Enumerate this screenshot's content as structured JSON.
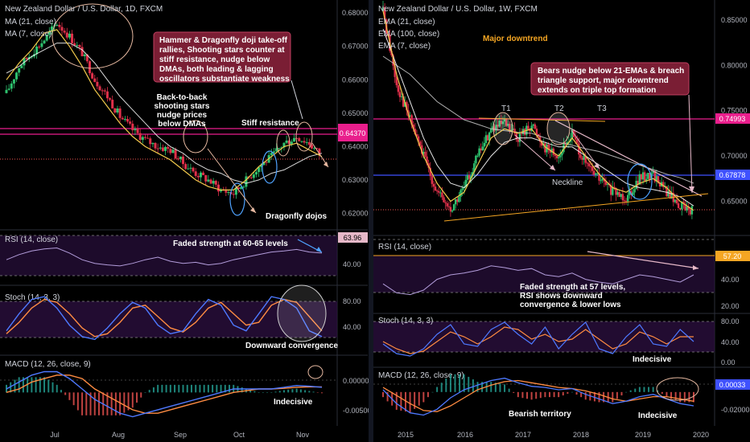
{
  "colors": {
    "bg": "#000000",
    "bull": "#26a69a",
    "bear": "#ef5350",
    "bull_candle": "#2ec26e",
    "bear_candle": "#e0304a",
    "ma21": "#ffffff",
    "ma7": "#f2c94c",
    "ema100": "#cccccc",
    "rsi": "#b39ddb",
    "stoch_k": "#4e79ff",
    "stoch_d": "#ff8c42",
    "macd": "#4e79ff",
    "signal": "#ff8c42",
    "magenta": "#e91e8c",
    "blue_line": "#3f51ff",
    "callout_fill": "#7a1e34",
    "circle": "#e6b8a0",
    "circle_blue": "#4fa3ff"
  },
  "panels": {
    "left": {
      "title": "New Zealand Dollar / U.S. Dollar, 1D, FXCM",
      "ind1": "MA (21, close)",
      "ind2": "MA (7, close)",
      "rsi_title": "RSI (14, close)",
      "stoch_title": "Stoch (14, 3, 3)",
      "macd_title": "MACD (12, 26, close, 9)",
      "price_axis": [
        "0.68000",
        "0.67000",
        "0.66000",
        "0.65000",
        "0.64000",
        "0.63000",
        "0.62000"
      ],
      "price_tag_1": "0.64370",
      "rsi_tag": "63.96",
      "rsi_axis": [
        "40.00"
      ],
      "stoch_axis": [
        "80.00",
        "40.00"
      ],
      "macd_axis": [
        "0.00000",
        "-0.00500"
      ],
      "x_labels": [
        "Jul",
        "Aug",
        "Sep",
        "Oct",
        "Nov"
      ],
      "callout": [
        "Hammer & Dragonfly doji take-off",
        "rallies, Shooting stars counter at",
        "stiff resistance, nudge below",
        "DMAs, both leading & lagging",
        "oscillators substantiate weakness"
      ],
      "ann_shooting": [
        "Back-to-back",
        "shooting stars",
        "nudge prices",
        "below DMAs"
      ],
      "ann_stiff": "Stiff resistance",
      "ann_dragonfly": "Dragonfly dojos",
      "ann_rsi": "Faded strength at 60-65 levels",
      "ann_stoch": "Downward convergence",
      "ann_macd": "Indecisive"
    },
    "right": {
      "title": "New Zealand Dollar / U.S. Dollar, 1W, FXCM",
      "ind1": "EMA (21, close)",
      "ind2": "EMA (100, close)",
      "ind3": "EMA (7, close)",
      "rsi_title": "RSI (14, close)",
      "stoch_title": "Stoch (14, 3, 3)",
      "macd_title": "MACD (12, 26, close, 9)",
      "price_axis": [
        "0.85000",
        "0.80000",
        "0.75000",
        "0.70000",
        "0.65000"
      ],
      "price_tag_1": "0.74993",
      "price_tag_2": "0.67878",
      "rsi_tag": "57.20",
      "rsi_axis": [
        "40.00",
        "20.00"
      ],
      "stoch_axis": [
        "80.00",
        "40.00",
        "0.00"
      ],
      "macd_tag": "0.00033",
      "macd_axis": [
        "-0.02000"
      ],
      "x_labels": [
        "2015",
        "2016",
        "2017",
        "2018",
        "2019",
        "2020"
      ],
      "ann_major": "Major downtrend",
      "callout": [
        "Bears nudge below 21-EMAs & breach",
        "triangle support, major downtrend",
        "extends on triple top formation"
      ],
      "t1": "T1",
      "t2": "T2",
      "t3": "T3",
      "neckline": "Neckline",
      "ann_rsi": [
        "Faded strength at 57 levels,",
        "RSI shows downward",
        "convergence & lower lows"
      ],
      "ann_stoch": "Indecisive",
      "ann_macd_bearish": "Bearish territory",
      "ann_macd_indecisive": "Indecisive"
    }
  },
  "chart_data": [
    {
      "type": "candlestick",
      "title": "New Zealand Dollar / U.S. Dollar, 1D, FXCM",
      "x_ticks": [
        "Jul",
        "Aug",
        "Sep",
        "Oct",
        "Nov"
      ],
      "ylim": [
        0.6165,
        0.681
      ],
      "series": [
        {
          "name": "MA (21, close)",
          "values": [
            0.662,
            0.664,
            0.667,
            0.669,
            0.671,
            0.671,
            0.669,
            0.665,
            0.66,
            0.655,
            0.651,
            0.647,
            0.643,
            0.64,
            0.638,
            0.635,
            0.633,
            0.632,
            0.63,
            0.629,
            0.63,
            0.632,
            0.633,
            0.635,
            0.637,
            0.638
          ]
        },
        {
          "name": "MA (7, close)",
          "values": [
            0.66,
            0.665,
            0.669,
            0.674,
            0.675,
            0.67,
            0.664,
            0.657,
            0.652,
            0.647,
            0.643,
            0.64,
            0.638,
            0.636,
            0.633,
            0.63,
            0.628,
            0.627,
            0.627,
            0.63,
            0.634,
            0.637,
            0.64,
            0.641,
            0.639,
            0.637
          ]
        }
      ],
      "closes": [
        0.656,
        0.664,
        0.668,
        0.672,
        0.677,
        0.673,
        0.668,
        0.66,
        0.655,
        0.649,
        0.645,
        0.642,
        0.64,
        0.639,
        0.635,
        0.632,
        0.63,
        0.627,
        0.626,
        0.63,
        0.634,
        0.637,
        0.641,
        0.643,
        0.641,
        0.637
      ],
      "rsi_14": [
        45,
        55,
        62,
        66,
        68,
        58,
        45,
        38,
        35,
        33,
        38,
        45,
        50,
        42,
        38,
        40,
        35,
        38,
        45,
        50,
        55,
        60,
        62,
        65,
        60,
        58
      ],
      "stoch_k": [
        30,
        60,
        85,
        90,
        70,
        40,
        20,
        15,
        35,
        60,
        80,
        70,
        40,
        25,
        30,
        60,
        85,
        75,
        40,
        30,
        60,
        90,
        85,
        70,
        30,
        20
      ],
      "stoch_d": [
        25,
        45,
        70,
        85,
        80,
        60,
        35,
        20,
        25,
        45,
        70,
        75,
        55,
        35,
        28,
        45,
        70,
        80,
        60,
        40,
        45,
        75,
        85,
        80,
        55,
        30
      ],
      "macd": [
        0.001,
        0.003,
        0.005,
        0.006,
        0.006,
        0.004,
        0.001,
        -0.002,
        -0.004,
        -0.006,
        -0.007,
        -0.006,
        -0.005,
        -0.004,
        -0.003,
        -0.002,
        -0.001,
        0,
        0.001,
        0.001,
        0.001,
        0.001,
        0.0015,
        0.002,
        0.0018,
        0.0015
      ],
      "signal": [
        0,
        0.001,
        0.003,
        0.004,
        0.005,
        0.005,
        0.004,
        0.001,
        -0.001,
        -0.003,
        -0.005,
        -0.006,
        -0.006,
        -0.005,
        -0.004,
        -0.003,
        -0.002,
        -0.001,
        0,
        0.0005,
        0.001,
        0.001,
        0.0012,
        0.0015,
        0.0016,
        0.0016
      ],
      "levels": [
        0.6437,
        0.6395
      ],
      "ylabel": ""
    },
    {
      "type": "candlestick",
      "title": "New Zealand Dollar / U.S. Dollar, 1W, FXCM",
      "x_ticks": [
        "2015",
        "2016",
        "2017",
        "2018",
        "2019",
        "2020"
      ],
      "ylim": [
        0.615,
        0.865
      ],
      "series": [
        {
          "name": "EMA (21, close)",
          "values": [
            0.84,
            0.8,
            0.76,
            0.72,
            0.69,
            0.67,
            0.665,
            0.68,
            0.7,
            0.715,
            0.72,
            0.72,
            0.715,
            0.71,
            0.71,
            0.7,
            0.69,
            0.68,
            0.67,
            0.665,
            0.663,
            0.66,
            0.655,
            0.645
          ]
        },
        {
          "name": "EMA (100, close)",
          "values": [
            0.81,
            0.8,
            0.79,
            0.775,
            0.76,
            0.75,
            0.74,
            0.735,
            0.73,
            0.728,
            0.726,
            0.725,
            0.72,
            0.715,
            0.712,
            0.708,
            0.705,
            0.7,
            0.695,
            0.69,
            0.685,
            0.68,
            0.676,
            0.67
          ]
        },
        {
          "name": "EMA (7, close)",
          "values": [
            0.86,
            0.79,
            0.74,
            0.7,
            0.67,
            0.65,
            0.66,
            0.69,
            0.72,
            0.73,
            0.725,
            0.73,
            0.71,
            0.7,
            0.72,
            0.7,
            0.68,
            0.665,
            0.66,
            0.67,
            0.675,
            0.665,
            0.65,
            0.64
          ]
        }
      ],
      "closes": [
        0.86,
        0.78,
        0.74,
        0.7,
        0.66,
        0.64,
        0.665,
        0.7,
        0.73,
        0.735,
        0.72,
        0.735,
        0.71,
        0.7,
        0.725,
        0.69,
        0.675,
        0.66,
        0.655,
        0.675,
        0.68,
        0.66,
        0.645,
        0.64
      ],
      "rsi_14": [
        40,
        30,
        28,
        33,
        45,
        50,
        52,
        55,
        60,
        58,
        55,
        57,
        50,
        48,
        52,
        45,
        42,
        40,
        45,
        50,
        48,
        45,
        42,
        50
      ],
      "stoch_k": [
        40,
        20,
        15,
        30,
        60,
        80,
        40,
        35,
        70,
        85,
        60,
        40,
        75,
        30,
        60,
        85,
        30,
        20,
        55,
        80,
        40,
        35,
        70,
        45
      ],
      "stoch_d": [
        45,
        30,
        20,
        25,
        45,
        65,
        55,
        40,
        55,
        75,
        70,
        50,
        60,
        45,
        50,
        70,
        50,
        30,
        40,
        65,
        55,
        40,
        55,
        55
      ],
      "macd": [
        0.002,
        -0.01,
        -0.018,
        -0.02,
        -0.015,
        -0.005,
        0.002,
        0.006,
        0.01,
        0.012,
        0.008,
        0.005,
        0.004,
        0.002,
        0.003,
        -0.002,
        -0.006,
        -0.01,
        -0.008,
        -0.004,
        -0.002,
        -0.006,
        -0.01,
        -0.012
      ],
      "signal": [
        0.004,
        -0.003,
        -0.01,
        -0.016,
        -0.017,
        -0.012,
        -0.005,
        0.002,
        0.006,
        0.009,
        0.01,
        0.008,
        0.006,
        0.004,
        0.003,
        0.001,
        -0.002,
        -0.006,
        -0.008,
        -0.006,
        -0.004,
        -0.004,
        -0.006,
        -0.008
      ],
      "levels": [
        0.74993,
        0.67878
      ],
      "ylabel": ""
    }
  ]
}
